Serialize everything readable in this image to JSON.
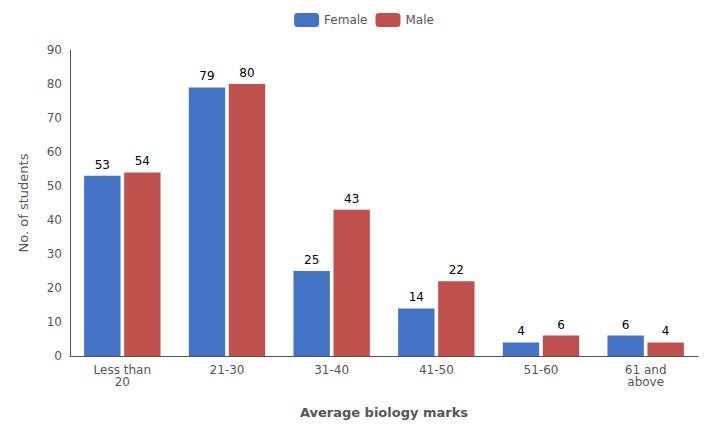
{
  "chart_data": {
    "type": "bar",
    "categories": [
      "Less than\n20",
      "21-30",
      "31-40",
      "41-50",
      "51-60",
      "61 and\nabove"
    ],
    "series": [
      {
        "name": "Female",
        "color": "#4472C4",
        "values": [
          53,
          79,
          25,
          14,
          4,
          6
        ]
      },
      {
        "name": "Male",
        "color": "#C0504D",
        "values": [
          54,
          80,
          43,
          22,
          6,
          4
        ]
      }
    ],
    "xlabel": "Average biology marks",
    "ylabel": "No. of students",
    "ylim": [
      0,
      90
    ],
    "yticks": [
      0,
      10,
      20,
      30,
      40,
      50,
      60,
      70,
      80,
      90
    ],
    "grid": false,
    "legend": "top",
    "data_labels": true
  }
}
